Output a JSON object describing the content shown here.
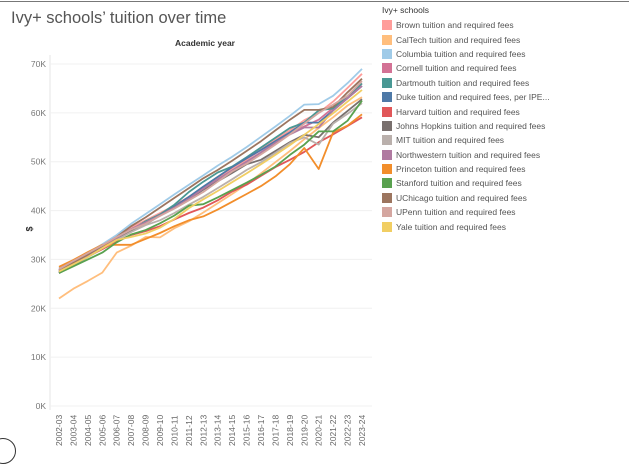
{
  "chart_data": {
    "type": "line",
    "title": "Ivy+ schools’ tuition over time",
    "xlabel": "Academic year",
    "ylabel": "$",
    "ylim": [
      0,
      70000
    ],
    "yticks": [
      0,
      10000,
      20000,
      30000,
      40000,
      50000,
      60000,
      70000
    ],
    "ytick_labels": [
      "0K",
      "10K",
      "20K",
      "30K",
      "40K",
      "50K",
      "60K",
      "70K"
    ],
    "grid": true,
    "legend_title": "Ivy+ schools",
    "legend_position": "right",
    "categories": [
      "2002-03",
      "2003-04",
      "2004-05",
      "2005-06",
      "2006-07",
      "2007-08",
      "2008-09",
      "2009-10",
      "2010-11",
      "2011-12",
      "2012-13",
      "2013-14",
      "2014-15",
      "2015-16",
      "2016-17",
      "2017-18",
      "2018-19",
      "2019-20",
      "2020-21",
      "2021-22",
      "2022-23",
      "2023-24"
    ],
    "series": [
      {
        "name": "Brown tuition and required fees",
        "color": "#ff9d9a",
        "values": [
          27.7,
          29.6,
          31.3,
          33.0,
          34.8,
          36.5,
          38.0,
          39.5,
          41.0,
          42.8,
          44.6,
          46.7,
          48.6,
          50.4,
          52.5,
          54.5,
          56.4,
          58.5,
          60.0,
          62.3,
          65.1,
          68.0
        ]
      },
      {
        "name": "CalTech tuition and required fees",
        "color": "#ffbe7d",
        "values": [
          22.0,
          24.0,
          25.6,
          27.3,
          31.4,
          32.8,
          34.6,
          34.5,
          36.4,
          37.8,
          39.6,
          41.5,
          43.4,
          45.4,
          47.6,
          49.9,
          52.2,
          54.6,
          56.9,
          59.1,
          61.5,
          63.2
        ]
      },
      {
        "name": "Columbia tuition and required fees",
        "color": "#a0cbe8",
        "values": [
          28.2,
          29.8,
          31.4,
          33.1,
          35.0,
          37.3,
          39.3,
          41.3,
          43.3,
          45.3,
          47.2,
          49.2,
          51.0,
          53.0,
          55.1,
          57.2,
          59.4,
          61.7,
          61.8,
          63.5,
          66.1,
          69.0
        ]
      },
      {
        "name": "Cornell tuition and required fees",
        "color": "#d37295",
        "values": [
          27.8,
          29.5,
          31.0,
          32.6,
          34.4,
          36.0,
          37.4,
          39.2,
          41.0,
          42.8,
          44.6,
          46.2,
          48.0,
          50.0,
          51.9,
          53.9,
          55.9,
          57.2,
          58.6,
          61.0,
          63.2,
          66.0
        ]
      },
      {
        "name": "Dartmouth tuition and required fees",
        "color": "#499894",
        "values": [
          27.6,
          29.0,
          30.8,
          32.4,
          34.2,
          36.0,
          37.8,
          39.2,
          41.2,
          43.8,
          45.9,
          47.8,
          49.0,
          50.9,
          52.9,
          54.9,
          56.9,
          58.0,
          60.5,
          60.9,
          63.5,
          66.0
        ]
      },
      {
        "name": "Duke tuition and required fees, per IPE...",
        "color": "#4e79a7",
        "values": [
          27.2,
          28.8,
          30.5,
          32.2,
          34.0,
          35.8,
          37.4,
          39.0,
          40.8,
          42.8,
          44.9,
          46.9,
          48.9,
          50.7,
          52.4,
          54.2,
          56.0,
          58.0,
          58.0,
          60.5,
          63.0,
          65.5
        ]
      },
      {
        "name": "Harvard tuition and required fees",
        "color": "#e15759",
        "values": [
          27.4,
          29.1,
          30.6,
          32.1,
          33.7,
          35.0,
          35.8,
          36.8,
          38.2,
          39.5,
          40.6,
          42.1,
          43.9,
          45.3,
          47.1,
          48.9,
          50.4,
          52.0,
          54.0,
          55.6,
          57.3,
          59.1
        ]
      },
      {
        "name": "Johns Hopkins tuition and required fees",
        "color": "#79706e",
        "values": [
          27.4,
          29.2,
          30.8,
          32.5,
          34.2,
          35.8,
          37.2,
          39.0,
          40.6,
          42.3,
          44.3,
          46.0,
          47.7,
          49.5,
          50.4,
          52.2,
          54.0,
          55.5,
          55.0,
          58.0,
          60.4,
          62.8
        ]
      },
      {
        "name": "MIT tuition and required fees",
        "color": "#bab0ac",
        "values": [
          27.4,
          29.0,
          30.5,
          32.3,
          34.0,
          35.6,
          37.0,
          38.0,
          39.5,
          41.2,
          42.8,
          44.6,
          46.4,
          48.3,
          49.9,
          51.8,
          53.8,
          55.0,
          53.5,
          57.8,
          59.8,
          62.0
        ]
      },
      {
        "name": "Northwestern tuition and required fees",
        "color": "#b07aa1",
        "values": [
          27.2,
          29.0,
          30.7,
          32.3,
          34.4,
          36.2,
          37.6,
          39.0,
          40.6,
          42.4,
          44.5,
          46.4,
          48.2,
          50.0,
          51.9,
          53.9,
          55.6,
          57.0,
          57.0,
          60.5,
          63.0,
          65.5
        ]
      },
      {
        "name": "Princeton tuition and required fees",
        "color": "#f28e2b",
        "values": [
          28.5,
          29.9,
          31.5,
          33.0,
          33.0,
          33.0,
          34.2,
          35.4,
          36.8,
          38.0,
          38.8,
          40.2,
          41.8,
          43.4,
          45.0,
          47.0,
          49.5,
          52.8,
          48.5,
          56.0,
          57.4,
          59.7
        ]
      },
      {
        "name": "Stanford tuition and required fees",
        "color": "#59a14f",
        "values": [
          27.2,
          28.6,
          30.0,
          31.4,
          33.5,
          35.1,
          36.0,
          37.4,
          39.0,
          41.0,
          41.3,
          42.7,
          44.2,
          45.7,
          47.3,
          49.0,
          51.4,
          53.5,
          56.2,
          56.2,
          58.4,
          62.5
        ]
      },
      {
        "name": "UChicago tuition and required fees",
        "color": "#9c755f",
        "values": [
          27.8,
          29.4,
          31.0,
          32.8,
          34.6,
          36.8,
          38.6,
          40.6,
          42.6,
          44.6,
          46.6,
          48.3,
          50.2,
          52.2,
          54.2,
          56.4,
          58.6,
          60.6,
          60.6,
          61.2,
          64.2,
          67.0
        ]
      },
      {
        "name": "UPenn tuition and required fees",
        "color": "#d4a6a0",
        "values": [
          28.0,
          29.7,
          31.3,
          32.9,
          34.6,
          36.1,
          37.3,
          38.9,
          40.4,
          42.1,
          43.8,
          45.9,
          48.0,
          49.6,
          51.5,
          53.5,
          55.6,
          57.8,
          60.0,
          61.7,
          63.5,
          66.5
        ]
      },
      {
        "name": "Yale tuition and required fees",
        "color": "#f1ce63",
        "values": [
          27.5,
          29.0,
          30.5,
          32.3,
          34.0,
          34.6,
          35.3,
          36.5,
          38.3,
          40.5,
          42.3,
          44.0,
          45.8,
          47.6,
          49.5,
          51.4,
          53.4,
          55.5,
          57.7,
          59.9,
          62.3,
          64.7
        ]
      }
    ],
    "values_unit": "thousands of dollars"
  }
}
